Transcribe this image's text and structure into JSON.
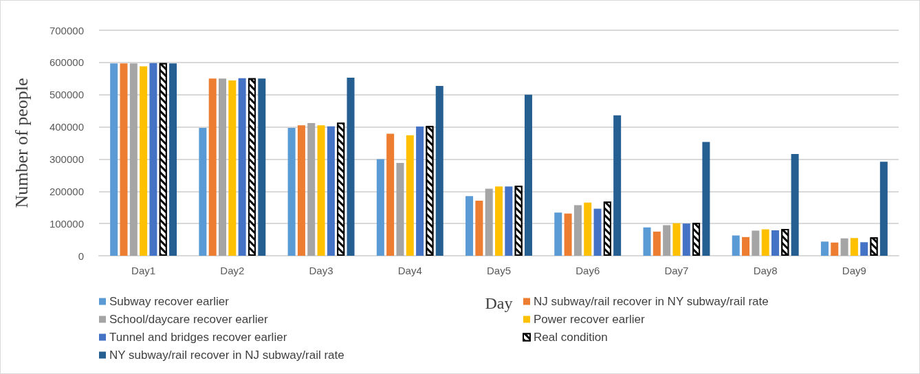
{
  "chart_data": {
    "type": "bar",
    "xlabel": "Day",
    "ylabel": "Number of people",
    "categories": [
      "Day1",
      "Day2",
      "Day3",
      "Day4",
      "Day5",
      "Day6",
      "Day7",
      "Day8",
      "Day9"
    ],
    "ylim": [
      0,
      700000
    ],
    "yticks": [
      0,
      100000,
      200000,
      300000,
      400000,
      500000,
      600000,
      700000
    ],
    "grid": "y",
    "legend": "bottom",
    "series": [
      {
        "name": "Subway recover earlier",
        "color": "#5b9bd5",
        "values": [
          597000,
          397000,
          397000,
          300000,
          185000,
          134000,
          88000,
          63000,
          44000
        ]
      },
      {
        "name": "NJ subway/rail recover in NY subway/rail rate",
        "color": "#ed7d31",
        "values": [
          597000,
          550000,
          405000,
          379000,
          171000,
          131000,
          75000,
          58000,
          41000
        ]
      },
      {
        "name": "School/daycare recover earlier",
        "color": "#a5a5a5",
        "values": [
          597000,
          550000,
          412000,
          288000,
          208000,
          157000,
          95000,
          78000,
          54000
        ]
      },
      {
        "name": "Power recover earlier",
        "color": "#ffc000",
        "values": [
          588000,
          544000,
          405000,
          374000,
          215000,
          165000,
          101000,
          82000,
          55000
        ]
      },
      {
        "name": "Tunnel and bridges recover earlier",
        "color": "#4472c4",
        "values": [
          598000,
          551000,
          402000,
          401000,
          215000,
          146000,
          100000,
          79000,
          42000
        ]
      },
      {
        "name": "Real condition",
        "color": "#000000",
        "values": [
          598000,
          551000,
          413000,
          403000,
          217000,
          168000,
          102000,
          83000,
          57000
        ]
      },
      {
        "name": "NY subway/rail recover in NJ subway/rail rate",
        "color": "#255e91",
        "values": [
          597000,
          550000,
          553000,
          527000,
          500000,
          436000,
          353000,
          316000,
          292000
        ]
      }
    ]
  }
}
